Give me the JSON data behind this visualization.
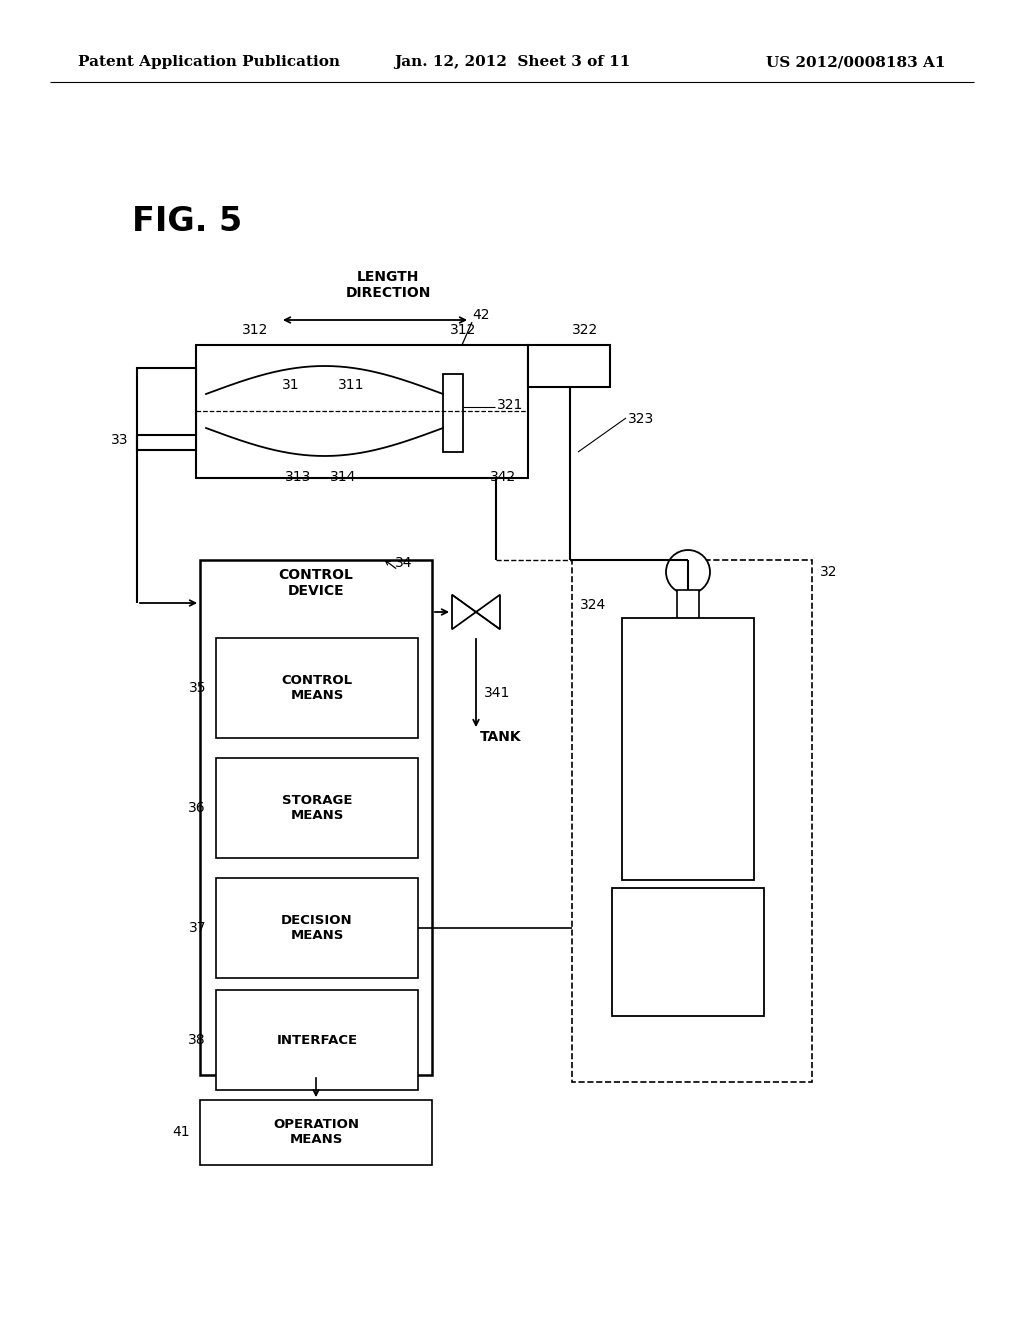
{
  "bg_color": "#ffffff",
  "header_left": "Patent Application Publication",
  "header_center": "Jan. 12, 2012  Sheet 3 of 11",
  "header_right": "US 2012/0008183 A1",
  "fig_label": "FIG. 5"
}
